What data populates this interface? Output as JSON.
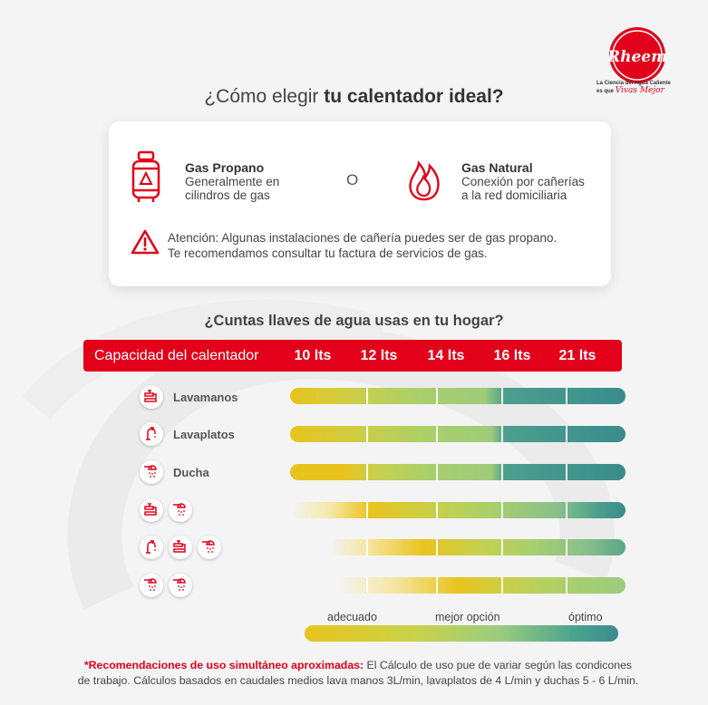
{
  "brand": {
    "name": "Rheem",
    "tagline": "La Ciencia del Agua Caliente",
    "tagline2_prefix": "es que",
    "tagline2_script": "Vivas Mejor"
  },
  "title": {
    "prefix": "¿Cómo elegir ",
    "bold": "tu calentador ideal?"
  },
  "gas_options": [
    {
      "name": "Gas Propano",
      "desc1": "Generalmente en",
      "desc2": "cilindros de gas",
      "icon": "gas-cylinder-icon"
    },
    {
      "name": "Gas Natural",
      "desc1": "Conexión por cañerías",
      "desc2": "a la red domiciliaria",
      "icon": "flame-icon"
    }
  ],
  "or_text": "O",
  "warning": {
    "line1": "Atención: Algunas instalaciones de cañería puedes ser de gas propano.",
    "line2": "Te recomendamos consultar tu factura de servicios de gas."
  },
  "question": "¿Cuntas llaves de agua usas en tu hogar?",
  "capacity": {
    "label": "Capacidad del calentador",
    "values": [
      "10 lts",
      "12 lts",
      "14 lts",
      "16 lts",
      "21 lts"
    ]
  },
  "rows": [
    {
      "label": "Lavamanos",
      "icons": [
        "faucet-icon"
      ]
    },
    {
      "label": "Lavaplatos",
      "icons": [
        "kitchen-tap-icon"
      ]
    },
    {
      "label": "Ducha",
      "icons": [
        "shower-icon"
      ]
    },
    {
      "label": "",
      "icons": [
        "faucet-icon",
        "shower-icon"
      ]
    },
    {
      "label": "",
      "icons": [
        "kitchen-tap-icon",
        "faucet-icon",
        "shower-icon"
      ]
    },
    {
      "label": "",
      "icons": [
        "shower-icon",
        "shower-icon"
      ]
    }
  ],
  "legend": {
    "adecuado": "adecuado",
    "mejor": "mejor opción",
    "optimo": "óptimo"
  },
  "colors": {
    "brand_red": "#e2001a",
    "yellow": "#e9c31d",
    "green": "#a8cf6e",
    "teal": "#3a8c8d"
  },
  "footnote": {
    "bold": "*Recomendaciones de uso simultáneo aproximadas:",
    "text1": " El Cálculo de uso pue de  variar según las condicones",
    "text2": "de trabajo. Cálculos basados en caudales medios lava manos 3L/min, lavaplatos de 4 L/min y duchas 5 - 6 L/min."
  }
}
